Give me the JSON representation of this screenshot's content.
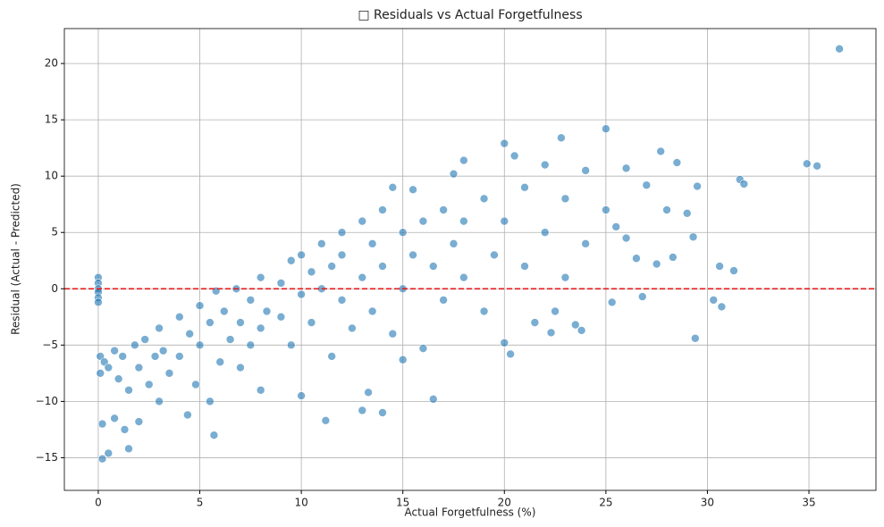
{
  "chart_data": {
    "type": "scatter",
    "title": "□ Residuals vs Actual Forgetfulness",
    "x_label": "Actual Forgetfulness (%)",
    "y_label": "Residual (Actual - Predicted)",
    "color": "#1f77b4",
    "grid": true,
    "xlim": [
      -1.67,
      38.3
    ],
    "ylim": [
      -17.9,
      23.1
    ],
    "xticks": [
      0,
      5,
      10,
      15,
      20,
      25,
      30,
      35
    ],
    "yticks": [
      {
        "value": -15,
        "label": "−15"
      },
      {
        "value": -10,
        "label": "−10"
      },
      {
        "value": -5,
        "label": "−5"
      },
      0,
      5,
      10,
      15,
      20
    ],
    "reference_line": {
      "y": 0,
      "color": "#e41a1c",
      "style": "dashed"
    },
    "x": [
      0,
      0,
      0,
      0,
      0,
      0,
      0.1,
      0.1,
      0.2,
      0.2,
      0.5,
      0.3,
      0.5,
      0.8,
      0.8,
      1,
      1.2,
      1.3,
      1.5,
      1.5,
      1.8,
      2,
      2,
      2.3,
      2.5,
      2.8,
      3,
      3,
      3.2,
      3.5,
      4,
      4,
      4.4,
      4.5,
      4.8,
      5,
      5,
      5.5,
      5.5,
      5.7,
      5.8,
      6,
      6.2,
      6.5,
      6.8,
      7,
      7,
      7.5,
      7.5,
      8,
      8,
      8,
      8.3,
      9,
      9,
      9.5,
      9.5,
      10,
      10,
      10,
      10.5,
      10.5,
      11,
      11,
      11.2,
      11.5,
      11.5,
      12,
      12,
      12,
      12.5,
      13,
      13,
      13,
      13.3,
      13.5,
      13.5,
      14,
      14,
      14,
      14.5,
      14.5,
      15,
      15,
      15,
      15.5,
      15.5,
      16,
      16,
      16.5,
      16.5,
      17,
      17,
      17.5,
      17.5,
      18,
      18,
      18,
      19,
      19,
      19.5,
      20,
      20,
      20,
      20.3,
      20.5,
      21,
      21,
      21.5,
      22,
      22,
      22.3,
      22.5,
      22.8,
      23,
      23,
      23.5,
      23.8,
      24,
      24,
      25,
      25,
      25.3,
      25.5,
      26,
      26,
      26.5,
      26.8,
      27,
      27.5,
      27.7,
      28,
      28.3,
      28.5,
      29,
      29.3,
      29.4,
      29.5,
      30.3,
      30.6,
      30.7,
      31.3,
      31.6,
      31.8,
      34.9,
      35.4,
      36.5
    ],
    "y": [
      1,
      0.5,
      0,
      -0.3,
      -0.8,
      -1.2,
      -6,
      -7.5,
      -12,
      -15.1,
      -14.6,
      -6.5,
      -7,
      -5.5,
      -11.5,
      -8,
      -6,
      -12.5,
      -14.2,
      -9,
      -5,
      -7,
      -11.8,
      -4.5,
      -8.5,
      -6,
      -3.5,
      -10,
      -5.5,
      -7.5,
      -2.5,
      -6,
      -11.2,
      -4,
      -8.5,
      -1.5,
      -5,
      -3,
      -10,
      -13,
      -0.2,
      -6.5,
      -2,
      -4.5,
      0,
      -3,
      -7,
      -1,
      -5,
      1,
      -3.5,
      -9,
      -2,
      0.5,
      -2.5,
      2.5,
      -5,
      -0.5,
      3,
      -9.5,
      1.5,
      -3,
      4,
      0,
      -11.7,
      2,
      -6,
      5,
      -1,
      3,
      -3.5,
      6,
      1,
      -10.8,
      -9.2,
      4,
      -2,
      -11,
      7,
      2,
      9,
      -4,
      5,
      0,
      -6.3,
      3,
      8.8,
      6,
      -5.3,
      -9.8,
      2,
      7,
      -1,
      10.2,
      4,
      11.4,
      1,
      6,
      8,
      -2,
      3,
      12.9,
      -4.8,
      6,
      -5.8,
      11.8,
      9,
      2,
      -3,
      11,
      5,
      -3.9,
      -2,
      13.4,
      8,
      1,
      -3.2,
      -3.7,
      10.5,
      4,
      14.2,
      7,
      -1.2,
      5.5,
      10.7,
      4.5,
      2.7,
      -0.7,
      9.2,
      2.2,
      12.2,
      7,
      2.8,
      11.2,
      6.7,
      4.6,
      -4.4,
      9.1,
      -1,
      2,
      -1.6,
      1.6,
      9.7,
      9.3,
      11.1,
      10.9,
      21.3
    ]
  }
}
